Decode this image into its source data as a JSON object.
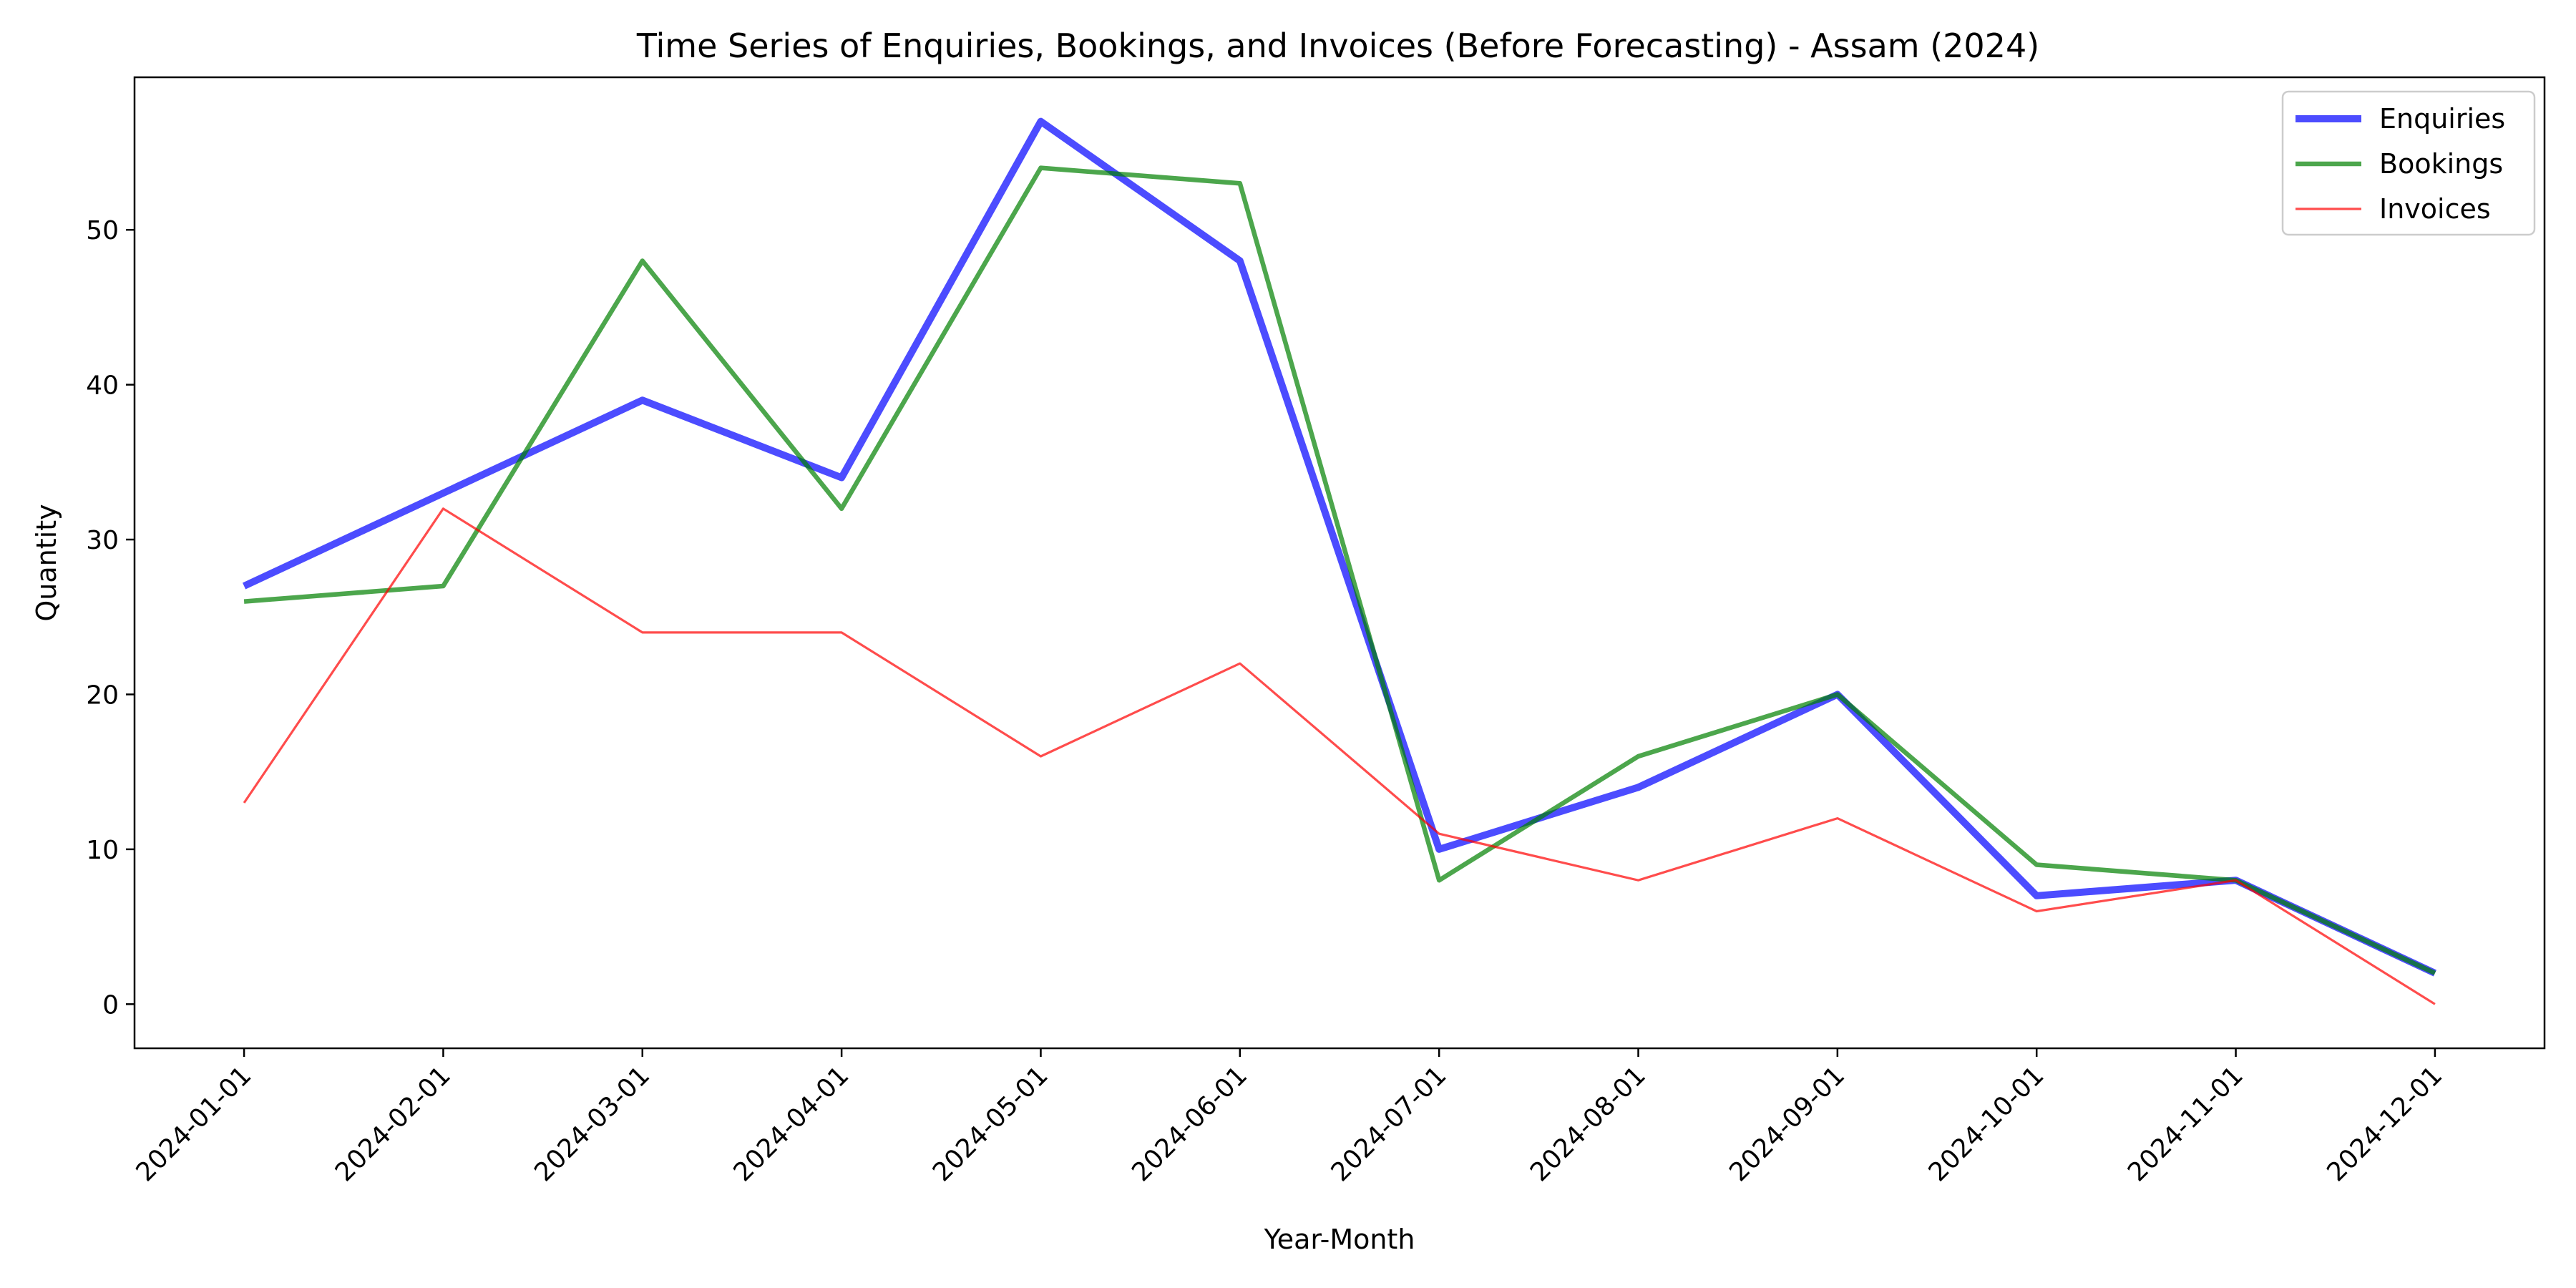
{
  "chart_data": {
    "type": "line",
    "title": "Time Series of Enquiries, Bookings, and Invoices (Before Forecasting) - Assam (2024)",
    "xlabel": "Year-Month",
    "ylabel": "Quantity",
    "x": [
      "2024-01-01",
      "2024-02-01",
      "2024-03-01",
      "2024-04-01",
      "2024-05-01",
      "2024-06-01",
      "2024-07-01",
      "2024-08-01",
      "2024-09-01",
      "2024-10-01",
      "2024-11-01",
      "2024-12-01"
    ],
    "ylim": [
      -2.85,
      59.85
    ],
    "yticks": [
      0,
      10,
      20,
      30,
      40,
      50
    ],
    "grid": false,
    "legend_position": "top-right",
    "series": [
      {
        "name": "Enquiries",
        "color": "#0000ff",
        "values": [
          27,
          33,
          39,
          34,
          57,
          48,
          10,
          14,
          20,
          7,
          8,
          2
        ]
      },
      {
        "name": "Bookings",
        "color": "#008000",
        "values": [
          26,
          27,
          48,
          32,
          54,
          53,
          8,
          16,
          20,
          9,
          8,
          2
        ]
      },
      {
        "name": "Invoices",
        "color": "#ff0000",
        "values": [
          13,
          32,
          24,
          24,
          16,
          22,
          11,
          8,
          12,
          6,
          8,
          0
        ]
      }
    ]
  }
}
